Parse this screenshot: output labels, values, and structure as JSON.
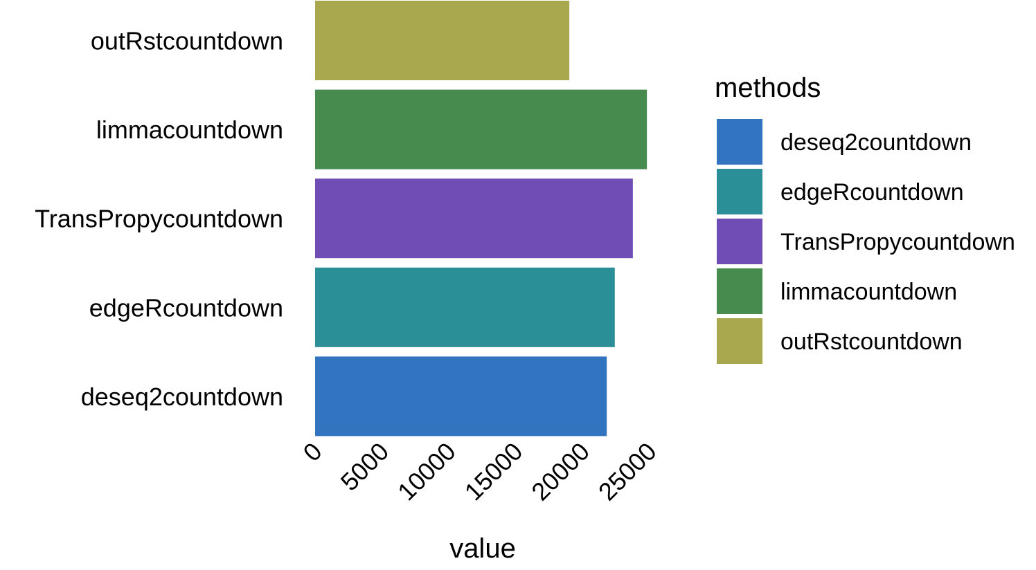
{
  "chart_data": {
    "type": "bar",
    "orientation": "horizontal",
    "categories": [
      "deseq2countdown",
      "edgeRcountdown",
      "TransPropycountdown",
      "limmacountdown",
      "outRstcountdown"
    ],
    "values": [
      21800,
      22400,
      23750,
      24800,
      19000
    ],
    "colors": [
      "#3274c0",
      "#2a8f97",
      "#6f4db4",
      "#478b4e",
      "#aaa84f"
    ],
    "xlabel": "value",
    "ylabel": "",
    "xlim": [
      0,
      25500
    ],
    "xticks": [
      0,
      5000,
      10000,
      15000,
      20000,
      25000
    ],
    "xtick_labels": [
      "0",
      "5000",
      "10000",
      "15000",
      "20000",
      "25000"
    ],
    "grid": false,
    "legend": {
      "title": "methods",
      "position": "right",
      "items": [
        "deseq2countdown",
        "edgeRcountdown",
        "TransPropycountdown",
        "limmacountdown",
        "outRstcountdown"
      ]
    }
  }
}
